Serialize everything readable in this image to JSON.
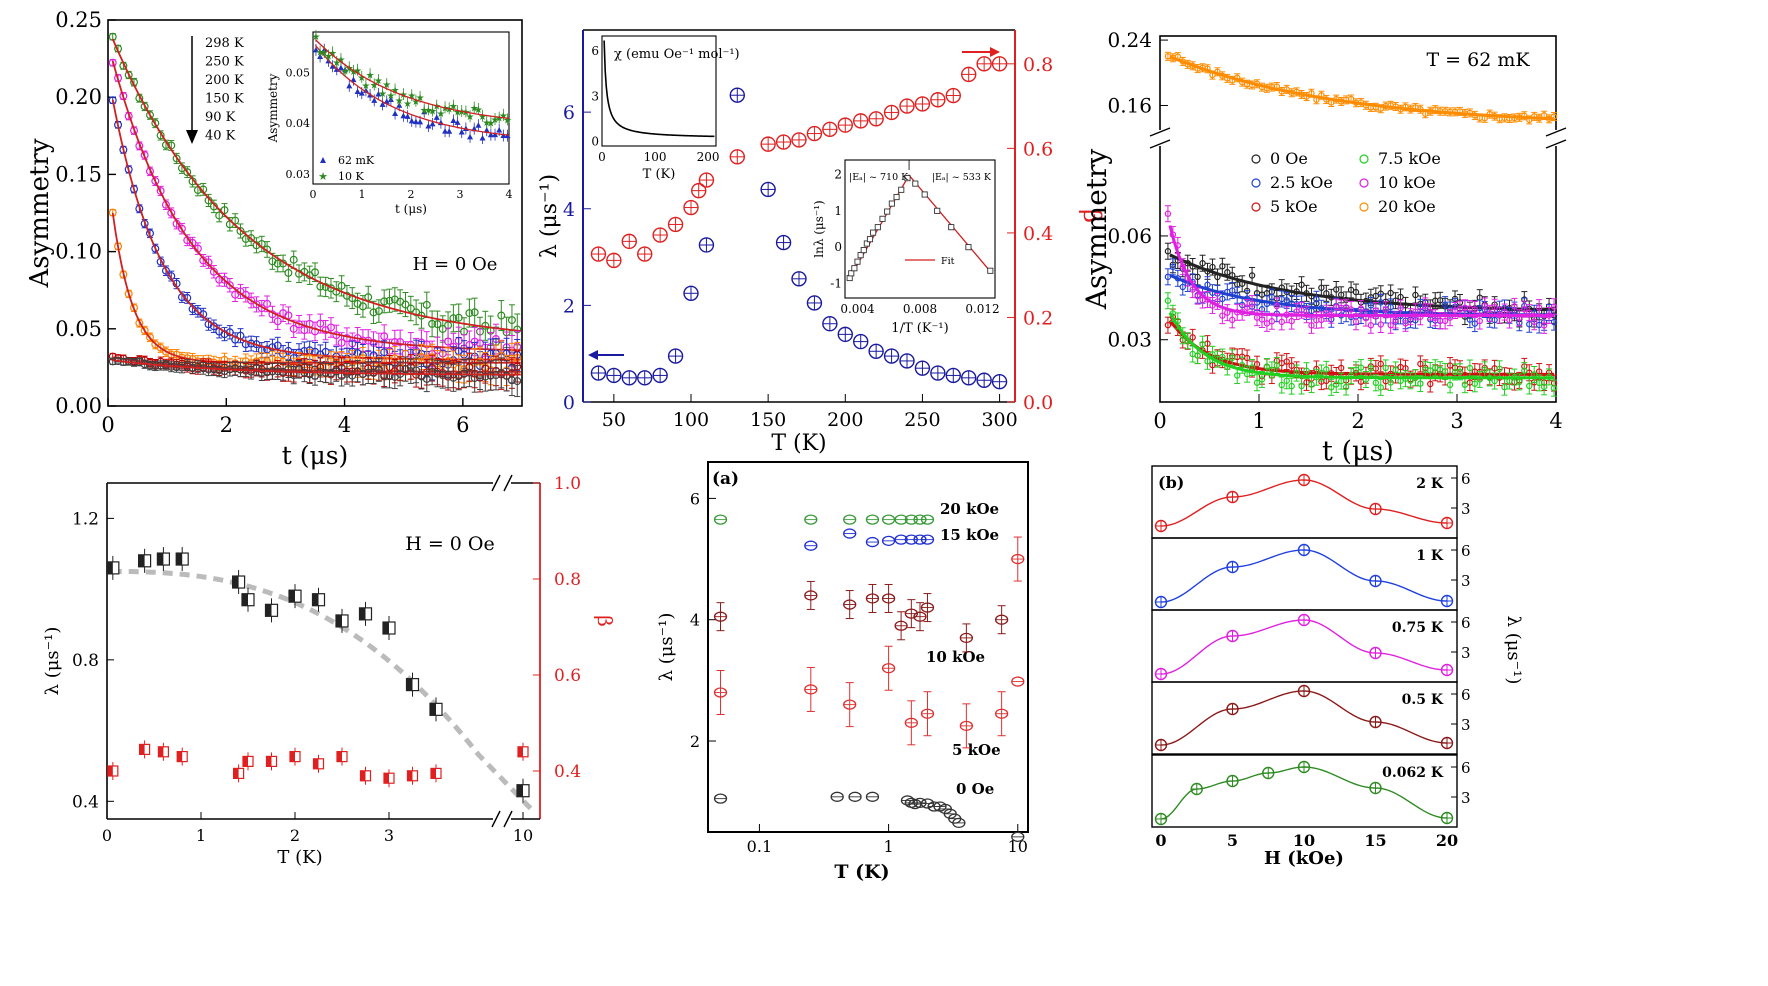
{
  "chart_data": [
    {
      "id": "p1",
      "type": "scatter",
      "xlabel": "t (μs)",
      "ylabel": "Asymmetry",
      "xlim": [
        0,
        7
      ],
      "ylim": [
        0,
        0.25
      ],
      "xticks": [
        "0",
        "2",
        "4",
        "6"
      ],
      "yticks": [
        "0.00",
        "0.05",
        "0.10",
        "0.15",
        "0.20",
        "0.25"
      ],
      "annotation": "H = 0 Oe",
      "legend_text": [
        "298 K",
        "250 K",
        "200 K",
        "150 K",
        "90 K",
        "40 K"
      ],
      "series": [
        {
          "name": "40 K",
          "color": "#2e8b22",
          "a0": 0.245,
          "tau": 2.2,
          "base": 0.04,
          "noise": 0.012
        },
        {
          "name": "90 K",
          "color": "#e020e0",
          "a0": 0.235,
          "tau": 1.35,
          "base": 0.035,
          "noise": 0.01
        },
        {
          "name": "150 K",
          "color": "#2030c0",
          "a0": 0.215,
          "tau": 0.85,
          "base": 0.03,
          "noise": 0.008
        },
        {
          "name": "200 K",
          "color": "#ff8000",
          "a0": 0.15,
          "tau": 0.35,
          "base": 0.028,
          "noise": 0.006
        },
        {
          "name": "250 K",
          "color": "#c00000",
          "a0": 0.032,
          "tau": 1.5,
          "base": 0.022,
          "noise": 0.005
        },
        {
          "name": "298 K",
          "color": "#404040",
          "a0": 0.03,
          "tau": 2.0,
          "base": 0.02,
          "noise": 0.005
        }
      ],
      "inset": {
        "xlabel": "t (μs)",
        "ylabel": "Asymmetry",
        "xlim": [
          0,
          4
        ],
        "ylim": [
          0.028,
          0.058
        ],
        "xticks": [
          "0",
          "1",
          "2",
          "3",
          "4"
        ],
        "yticks": [
          "0.03",
          "0.04",
          "0.05"
        ],
        "series": [
          {
            "name": "62 mK",
            "color": "#2030c0",
            "a0": 0.056,
            "tau": 1.6,
            "base": 0.036
          },
          {
            "name": "10 K",
            "color": "#2e8b22",
            "a0": 0.057,
            "tau": 1.8,
            "base": 0.039
          }
        ]
      }
    },
    {
      "id": "p2",
      "type": "scatter",
      "xlabel": "T (K)",
      "ylabel": "λ (μs⁻¹)",
      "y2label": "β",
      "xlim": [
        30,
        310
      ],
      "ylim": [
        0,
        7.7
      ],
      "y2lim": [
        0,
        0.88
      ],
      "xticks": [
        "50",
        "100",
        "150",
        "200",
        "250",
        "300"
      ],
      "yticks": [
        "0",
        "2",
        "4",
        "6"
      ],
      "y2ticks": [
        "0.0",
        "0.2",
        "0.4",
        "0.6",
        "0.8"
      ],
      "lambda": {
        "x": [
          40,
          50,
          60,
          70,
          80,
          90,
          100,
          110,
          130,
          150,
          160,
          170,
          180,
          190,
          200,
          210,
          220,
          230,
          240,
          250,
          260,
          270,
          280,
          290,
          300
        ],
        "y": [
          0.6,
          0.55,
          0.5,
          0.5,
          0.55,
          0.95,
          2.25,
          3.25,
          6.35,
          4.4,
          3.3,
          2.55,
          2.05,
          1.62,
          1.4,
          1.25,
          1.05,
          0.95,
          0.85,
          0.7,
          0.6,
          0.55,
          0.5,
          0.45,
          0.42
        ]
      },
      "beta": {
        "x": [
          40,
          50,
          60,
          70,
          80,
          90,
          100,
          105,
          110,
          130,
          150,
          160,
          170,
          180,
          190,
          200,
          210,
          220,
          230,
          240,
          250,
          260,
          270,
          280,
          290,
          300
        ],
        "y": [
          0.35,
          0.335,
          0.38,
          0.35,
          0.395,
          0.42,
          0.46,
          0.5,
          0.525,
          0.58,
          0.61,
          0.615,
          0.62,
          0.635,
          0.645,
          0.655,
          0.665,
          0.67,
          0.685,
          0.7,
          0.705,
          0.715,
          0.725,
          0.775,
          0.8,
          0.8
        ]
      },
      "inset_chi": {
        "label": "χ (emu Oe⁻¹ mol⁻¹)",
        "xlabel": "T (K)",
        "xlim": [
          0,
          215
        ],
        "ylim": [
          -0.3,
          7
        ],
        "xticks": [
          "0",
          "100",
          "200"
        ],
        "yticks": [
          "0",
          "3",
          "6"
        ]
      },
      "inset_arr": {
        "xlabel": "1/T (K⁻¹)",
        "ylabel": "lnλ (μs⁻¹)",
        "xlim": [
          0.0032,
          0.0128
        ],
        "ylim": [
          -1.4,
          2.4
        ],
        "xticks": [
          "0.004",
          "0.008",
          "0.012"
        ],
        "yticks": [
          "-1",
          "0",
          "1",
          "2"
        ],
        "ann1": "|Eₐ| ~ 710 K",
        "ann2": "|Eₐ| ~ 533 K",
        "legend": "Fit",
        "x": [
          0.0035,
          0.0036,
          0.0038,
          0.004,
          0.0042,
          0.0044,
          0.0046,
          0.0048,
          0.005,
          0.0053,
          0.0056,
          0.0059,
          0.0062,
          0.0065,
          0.0068,
          0.0072,
          0.0077,
          0.0083,
          0.0091,
          0.01,
          0.0111,
          0.0125
        ],
        "y": [
          -0.85,
          -0.72,
          -0.58,
          -0.4,
          -0.22,
          -0.08,
          0.1,
          0.22,
          0.4,
          0.55,
          0.78,
          0.98,
          1.2,
          1.38,
          1.58,
          1.9,
          1.75,
          1.45,
          1.0,
          0.55,
          0.0,
          -0.65
        ]
      }
    },
    {
      "id": "p3",
      "type": "scatter",
      "xlabel": "t (μs)",
      "ylabel": "Asymmetry",
      "annotation": "T = 62 mK",
      "xlim": [
        0,
        4
      ],
      "xticks": [
        "0",
        "1",
        "2",
        "3",
        "4"
      ],
      "yticks_upper": [
        "0.16",
        "0.24"
      ],
      "yticks_lower": [
        "0.03",
        "0.06"
      ],
      "series": [
        {
          "name": "0 Oe",
          "color": "#222222",
          "a0": 0.056,
          "tau": 1.2,
          "base": 0.038
        },
        {
          "name": "2.5 kOe",
          "color": "#2040d0",
          "a0": 0.05,
          "tau": 0.9,
          "base": 0.037
        },
        {
          "name": "5 kOe",
          "color": "#d01010",
          "a0": 0.04,
          "tau": 0.4,
          "base": 0.02
        },
        {
          "name": "7.5 kOe",
          "color": "#20d020",
          "a0": 0.044,
          "tau": 0.35,
          "base": 0.019
        },
        {
          "name": "10 kOe",
          "color": "#e020e0",
          "a0": 0.078,
          "tau": 0.22,
          "base": 0.037
        },
        {
          "name": "20 kOe",
          "color": "#ff8c00",
          "a0": 0.225,
          "tau": 1.7,
          "base": 0.135
        }
      ]
    },
    {
      "id": "p4",
      "type": "scatter",
      "xlabel": "T (K)",
      "ylabel": "λ (μs⁻¹)",
      "y2label": "β",
      "annotation": "H = 0 Oe",
      "ylim": [
        0.35,
        1.3
      ],
      "y2lim": [
        0.3,
        1.0
      ],
      "xticks": [
        "0",
        "1",
        "2",
        "3",
        "10"
      ],
      "yticks": [
        "0.4",
        "0.8",
        "1.2"
      ],
      "y2ticks": [
        "0.4",
        "0.6",
        "0.8",
        "1.0"
      ],
      "lambda": {
        "x": [
          0.062,
          0.4,
          0.6,
          0.8,
          1.4,
          1.5,
          1.75,
          2.0,
          2.25,
          2.5,
          2.75,
          3.0,
          3.25,
          3.5,
          10
        ],
        "y": [
          1.06,
          1.08,
          1.085,
          1.085,
          1.02,
          0.97,
          0.94,
          0.98,
          0.97,
          0.91,
          0.93,
          0.89,
          0.73,
          0.66,
          0.43
        ]
      },
      "beta": {
        "x": [
          0.062,
          0.4,
          0.6,
          0.8,
          1.4,
          1.5,
          1.75,
          2.0,
          2.25,
          2.5,
          2.75,
          3.0,
          3.25,
          3.5,
          10
        ],
        "y": [
          0.4,
          0.445,
          0.44,
          0.43,
          0.395,
          0.42,
          0.42,
          0.43,
          0.415,
          0.43,
          0.39,
          0.385,
          0.39,
          0.395,
          0.44
        ]
      }
    },
    {
      "id": "p5",
      "type": "scatter",
      "xlabel": "T (K)",
      "ylabel": "λ (μs⁻¹)",
      "panel_label": "(a)",
      "xscale": "log",
      "xlim": [
        0.04,
        12
      ],
      "ylim": [
        0.5,
        6.6
      ],
      "xticks": [
        "0.1",
        "1",
        "10"
      ],
      "yticks": [
        "2",
        "4",
        "6"
      ],
      "labels": [
        "20 kOe",
        "15 kOe",
        "10 kOe",
        "5 kOe",
        "0 Oe"
      ],
      "series": [
        {
          "name": "20 kOe",
          "color": "#3a9a3a",
          "x": [
            0.05,
            0.25,
            0.5,
            0.75,
            1.0,
            1.25,
            1.5,
            1.75,
            2.0
          ],
          "y": [
            5.65,
            5.65,
            5.65,
            5.65,
            5.65,
            5.65,
            5.65,
            5.65,
            5.65
          ]
        },
        {
          "name": "15 kOe",
          "color": "#2030d0",
          "x": [
            0.25,
            0.5,
            0.75,
            1.0,
            1.25,
            1.5,
            1.75,
            2.0
          ],
          "y": [
            5.22,
            5.42,
            5.28,
            5.3,
            5.32,
            5.32,
            5.32,
            5.32
          ]
        },
        {
          "name": "10 kOe",
          "color": "#8b1a1a",
          "x": [
            0.05,
            0.25,
            0.5,
            0.75,
            1.0,
            1.25,
            1.5,
            1.75,
            2.0,
            4.0,
            7.5
          ],
          "y": [
            4.05,
            4.4,
            4.25,
            4.35,
            4.35,
            3.9,
            4.1,
            4.05,
            4.2,
            3.7,
            4.0
          ]
        },
        {
          "name": "5 kOe",
          "color": "#e03030",
          "x": [
            0.05,
            0.25,
            0.5,
            1.0,
            1.5,
            2.0,
            4.0,
            7.5,
            10
          ],
          "y": [
            2.8,
            2.85,
            2.6,
            3.2,
            2.3,
            2.45,
            2.25,
            2.45,
            5.0
          ]
        },
        {
          "name": "0 Oe",
          "color": "#333333",
          "x": [
            0.05,
            0.4,
            0.55,
            0.75,
            1.4,
            1.5,
            1.6,
            1.75,
            2.0,
            2.25,
            2.5,
            2.75,
            3.0,
            3.25,
            3.5,
            10
          ],
          "y": [
            1.05,
            1.08,
            1.08,
            1.08,
            1.02,
            0.98,
            0.96,
            0.98,
            0.97,
            0.92,
            0.92,
            0.88,
            0.8,
            0.72,
            0.65,
            0.42
          ]
        },
        {
          "name": "5 kOe",
          "color": "#e03030",
          "x": [
            10
          ],
          "y": [
            2.98
          ]
        }
      ]
    },
    {
      "id": "p6",
      "type": "line",
      "xlabel": "H (kOe)",
      "ylabel": "λ (μs⁻¹)",
      "panel_label": "(b)",
      "xlim": [
        0,
        20
      ],
      "ylim": [
        0,
        7.2
      ],
      "xticks": [
        "0",
        "5",
        "10",
        "15",
        "20"
      ],
      "yticks": [
        "3",
        "6"
      ],
      "x": [
        0,
        5,
        10,
        15,
        20
      ],
      "subplots": [
        {
          "name": "2 K",
          "color": "#e02020",
          "x": [
            0,
            5,
            10,
            15,
            20
          ],
          "y": [
            1.2,
            4.1,
            5.8,
            2.9,
            1.5
          ]
        },
        {
          "name": "1 K",
          "color": "#2040e0",
          "x": [
            0,
            5,
            10,
            15,
            20
          ],
          "y": [
            0.8,
            4.3,
            6.0,
            2.9,
            0.9
          ]
        },
        {
          "name": "0.75 K",
          "color": "#e020e0",
          "x": [
            0,
            5,
            10,
            15,
            20
          ],
          "y": [
            0.8,
            4.6,
            6.2,
            2.9,
            1.2
          ]
        },
        {
          "name": "0.5 K",
          "color": "#8b1a1a",
          "x": [
            0,
            5,
            10,
            15,
            20
          ],
          "y": [
            0.9,
            4.5,
            6.3,
            3.2,
            1.1
          ]
        },
        {
          "name": "0.062 K",
          "color": "#2e8b22",
          "x": [
            0,
            2.5,
            5,
            7.5,
            10,
            15,
            20
          ],
          "y": [
            0.8,
            3.8,
            4.6,
            5.4,
            6.0,
            3.9,
            0.9
          ]
        }
      ]
    }
  ]
}
